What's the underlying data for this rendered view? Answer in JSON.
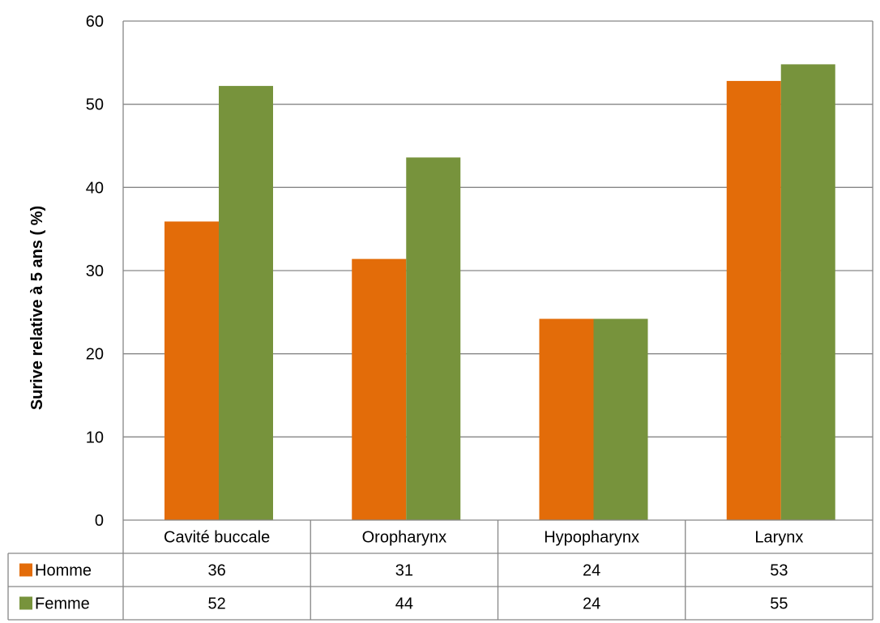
{
  "chart_data": {
    "type": "bar",
    "title": "",
    "xlabel": "",
    "ylabel": "Surive relative à 5 ans ( %)",
    "ylim": [
      0,
      60
    ],
    "yticks": [
      0,
      10,
      20,
      30,
      40,
      50,
      60
    ],
    "grid": true,
    "legend": "data-table",
    "categories": [
      "Cavité buccale",
      "Oropharynx",
      "Hypopharynx",
      "Larynx"
    ],
    "series": [
      {
        "name": "Homme",
        "color": "#E36C09",
        "values": [
          35.9,
          31.4,
          24.2,
          52.8
        ],
        "table_values": [
          "36",
          "31",
          "24",
          "53"
        ]
      },
      {
        "name": "Femme",
        "color": "#77933C",
        "values": [
          52.2,
          43.6,
          24.2,
          54.8
        ],
        "table_values": [
          "52",
          "44",
          "24",
          "55"
        ]
      }
    ]
  }
}
